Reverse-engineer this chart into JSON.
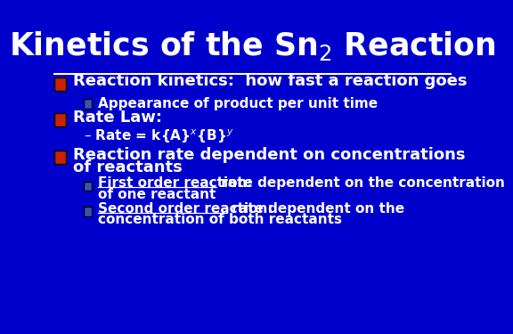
{
  "bg_color": "#0000CC",
  "text_color": "#FFFFFF",
  "red_bullet_color": "#CC2200",
  "blue_bullet_color": "#3355BB",
  "title_fontsize": 25,
  "body_fontsize": 13,
  "sub_fontsize": 11,
  "title": "Kinetics of the Sn$_2$ Reaction",
  "bullet1": "Reaction kinetics:  how fast a reaction goes",
  "bullet1_sub": "Appearance of product per unit time",
  "bullet2": "Rate Law:",
  "bullet2_sub": "– Rate = k{A}$^x${B}$^y$",
  "bullet3_line1": "Reaction rate dependent on concentrations",
  "bullet3_line2": "of reactants",
  "sub3a_bold": "First order reaction:",
  "sub3a_rest": " rate dependent on the concentration",
  "sub3a_line2": "of one reactant",
  "sub3b_bold": "Second order reaction:",
  "sub3b_rest": " rate dependent on the",
  "sub3b_line2": "concentration of both reactants"
}
